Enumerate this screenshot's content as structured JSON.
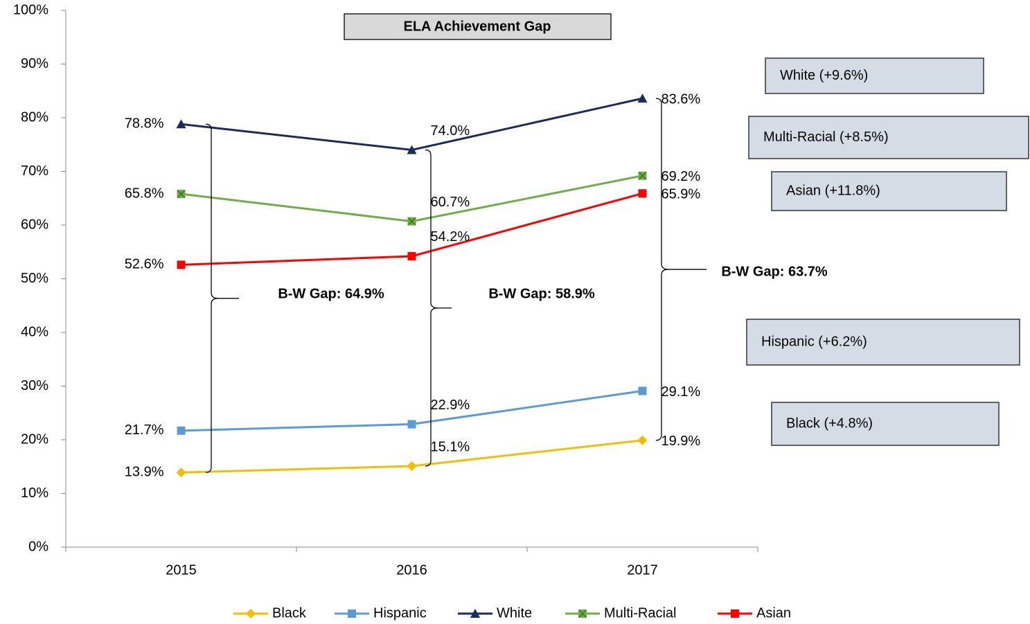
{
  "chart_data": {
    "type": "line",
    "title": "ELA Achievement Gap",
    "categories": [
      "2015",
      "2016",
      "2017"
    ],
    "series": [
      {
        "name": "Black",
        "color": "#f2bf00",
        "values": [
          13.9,
          15.1,
          19.9
        ],
        "value_labels": [
          "13.9%",
          "15.1%",
          "19.9%"
        ]
      },
      {
        "name": "Hispanic",
        "color": "#5b9bd5",
        "values": [
          21.7,
          22.9,
          29.1
        ],
        "value_labels": [
          "21.7%",
          "22.9%",
          "29.1%"
        ]
      },
      {
        "name": "White",
        "color": "#1a2b5c",
        "values": [
          78.8,
          74.0,
          83.6
        ],
        "value_labels": [
          "78.8%",
          "74.0%",
          "83.6%"
        ]
      },
      {
        "name": "Multi-Racial",
        "color": "#70ad47",
        "values": [
          65.8,
          60.7,
          69.2
        ],
        "value_labels": [
          "65.8%",
          "60.7%",
          "69.2%"
        ]
      },
      {
        "name": "Asian",
        "color": "#ff0000",
        "values": [
          52.6,
          54.2,
          65.9
        ],
        "value_labels": [
          "52.6%",
          "54.2%",
          "65.9%"
        ]
      }
    ],
    "ylim": [
      0,
      100
    ],
    "yticks": [
      {
        "value": 0,
        "label": "0%"
      },
      {
        "value": 10,
        "label": "10%"
      },
      {
        "value": 20,
        "label": "20%"
      },
      {
        "value": 30,
        "label": "30%"
      },
      {
        "value": 40,
        "label": "40%"
      },
      {
        "value": 50,
        "label": "50%"
      },
      {
        "value": 60,
        "label": "60%"
      },
      {
        "value": 70,
        "label": "70%"
      },
      {
        "value": 80,
        "label": "80%"
      },
      {
        "value": 90,
        "label": "90%"
      },
      {
        "value": 100,
        "label": "100%"
      }
    ],
    "grid": false,
    "gap_labels": [
      "B-W Gap: 64.9%",
      "B-W Gap: 58.9%",
      "B-W Gap: 63.7%"
    ],
    "change_labels": [
      "White (+9.6%)",
      "Multi-Racial (+8.5%)",
      "Asian (+11.8%)",
      "Hispanic (+6.2%)",
      "Black (+4.8%)"
    ]
  }
}
